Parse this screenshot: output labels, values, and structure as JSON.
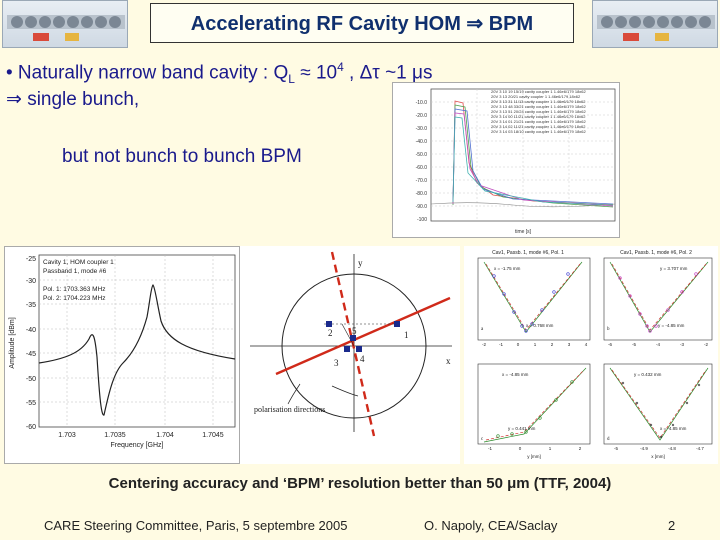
{
  "slide": {
    "title": "Accelerating RF Cavity HOM ⇒ BPM",
    "bullet_line_1": "•  Naturally narrow band cavity : Q",
    "bullet_sub_L": "L",
    "bullet_approx": " ≈ 10",
    "bullet_sup_4": "4",
    "bullet_tail": " , Δτ ~1 μs",
    "bullet_line_2": "⇒  single bunch,",
    "bullet_line_3": "but not bunch to bunch BPM",
    "footer_bold": "Centering accuracy and ‘BPM’ resolution better than 50 μm (TTF, 2004)",
    "footer_left": "CARE Steering Committee, Paris, 5 septembre 2005",
    "footer_center": "O. Napoly, CEA/Saclay",
    "footer_page": "2"
  },
  "spectrum_plot": {
    "legend": [
      "Cavity 1, HOM coupler 1",
      "Passband 1, mode #6",
      "Pol. 1: 1703.363 MHz",
      "Pol. 2: 1704.223 MHz"
    ],
    "yticks": [
      "-25",
      "-30",
      "-35",
      "-40",
      "-45",
      "-50",
      "-55",
      "-60"
    ],
    "xticks": [
      "1.703",
      "1.7035",
      "1.704",
      "1.7045"
    ],
    "ylabel": "Amplitude [dBm]",
    "xlabel": "Frequency [GHz]"
  },
  "time_plot": {
    "yticks": [
      "-10.0",
      "-20.0",
      "-30.0",
      "-40.0",
      "-50.0",
      "-60.0",
      "-70.0",
      "-80.0",
      "-90.0",
      "-100"
    ],
    "xlabel": "time [s]",
    "legend": [
      "20V 3 10 19 15/19 cavity coupler 1 1.46e6/179 18x62",
      "20V 3 13 20/21 cavity coupler 1 1.46e6/179 18x62",
      "20V 3 13 31 11/13 cavity coupler 1 1.46e6/179 18x62",
      "20V 3 13 48 33/21 cavity coupler 1 1.46e6/179 18x62",
      "20V 3 13 51 20/24 cavity coupler 1 1.46e6/179 18x62",
      "20V 3 14 00 11/21 cavity coupler 1 1.46e6/179 18x62",
      "20V 3 14 01 21/21 cavity coupler 1 1.46e6/179 18x62",
      "20V 3 14 02 11/21 cavity coupler 1 1.46e6/179 18x62",
      "20V 3 14 03 18/10 cavity coupler 1 1.46e6/179 18x62"
    ]
  },
  "diagram": {
    "y_label": "y",
    "x_label": "x",
    "points": [
      "1",
      "2",
      "3",
      "4",
      "5"
    ],
    "caption": "polarisation directions"
  },
  "fit_plots": [
    {
      "title": "Cav1, Passb. 1, mode #6, Pol. 1",
      "annotation": "x = -1.75 mm",
      "minimum_label": "x = 0.768 mm",
      "xticks": [
        "-2",
        "-1",
        "0",
        "1",
        "2",
        "3",
        "4"
      ],
      "letter": "a"
    },
    {
      "title": "Cav1, Passb. 1, mode #6, Pol. 2",
      "annotation": "y = 3.707 mm",
      "minimum_label": "y = -4.85 mm",
      "xticks": [
        "-6",
        "-5",
        "-4",
        "-3",
        "-2"
      ],
      "letter": "b"
    },
    {
      "title": "",
      "annotation": "x = -4.85 mm",
      "minimum_label": "y = 0.441 mm",
      "xticks": [
        "-1",
        "0",
        "1",
        "2"
      ],
      "xlabel": "y [mm]",
      "letter": "c"
    },
    {
      "title": "",
      "annotation": "y = 0.432 mm",
      "minimum_label": "x = -4.85 mm",
      "xticks": [
        "-5",
        "-4.9",
        "-4.8",
        "-4.7"
      ],
      "xlabel": "x [mm]",
      "letter": "d"
    }
  ]
}
